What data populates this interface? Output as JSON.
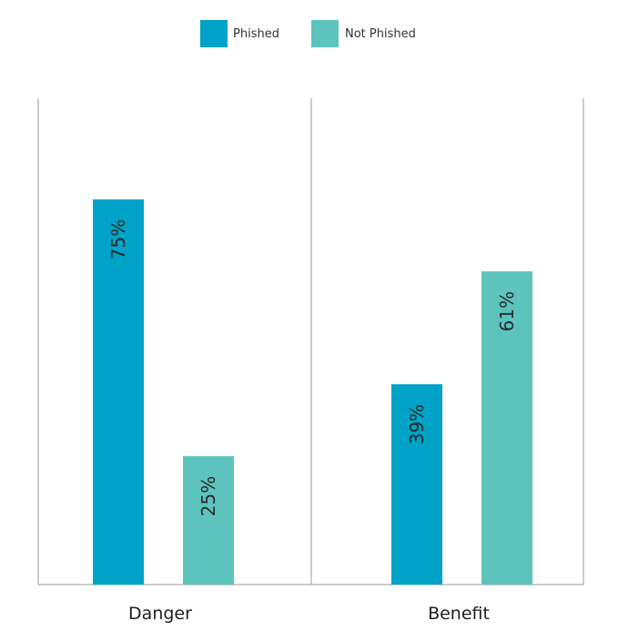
{
  "chart_data": {
    "type": "bar",
    "categories": [
      "Danger",
      "Benefit"
    ],
    "series": [
      {
        "name": "Phished",
        "values": [
          75,
          39
        ],
        "color": "#00a2c7",
        "labels": [
          "75%",
          "39%"
        ]
      },
      {
        "name": "Not Phished",
        "values": [
          25,
          61
        ],
        "color": "#5cc4bd",
        "labels": [
          "25%",
          "61%"
        ]
      }
    ],
    "ylim": [
      0,
      100
    ],
    "grid": false,
    "legend_position": "top-center",
    "axis_color": "#999999"
  }
}
